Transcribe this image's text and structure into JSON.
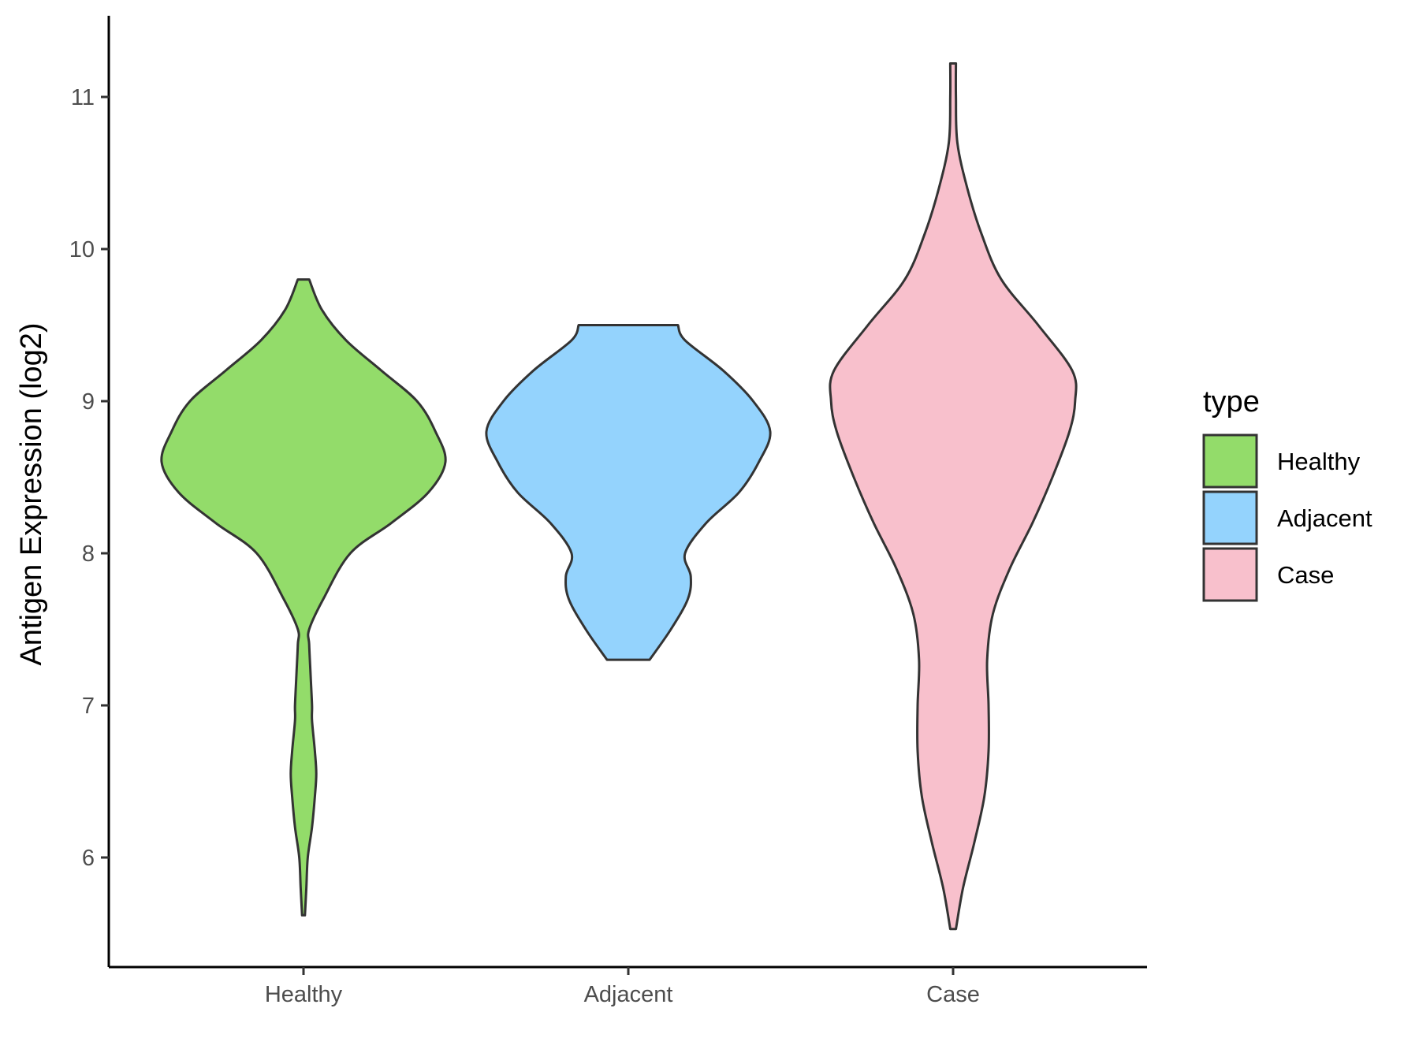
{
  "chart_data": {
    "type": "violin",
    "title": "",
    "xlabel": "",
    "ylabel": "Antigen Expression (log2)",
    "ylim": [
      5.3,
      11.5
    ],
    "yticks": [
      6,
      7,
      8,
      9,
      10,
      11
    ],
    "categories": [
      "Healthy",
      "Adjacent",
      "Case"
    ],
    "legend": {
      "title": "type",
      "position": "right"
    },
    "series": [
      {
        "name": "Healthy",
        "color": "#93dc6a",
        "min": 5.62,
        "max": 9.8,
        "density_profile": [
          [
            5.62,
            0.01
          ],
          [
            5.8,
            0.02
          ],
          [
            6.0,
            0.03
          ],
          [
            6.2,
            0.06
          ],
          [
            6.4,
            0.08
          ],
          [
            6.55,
            0.09
          ],
          [
            6.7,
            0.08
          ],
          [
            6.9,
            0.06
          ],
          [
            7.0,
            0.06
          ],
          [
            7.2,
            0.05
          ],
          [
            7.4,
            0.04
          ],
          [
            7.5,
            0.04
          ],
          [
            7.7,
            0.14
          ],
          [
            8.0,
            0.33
          ],
          [
            8.2,
            0.62
          ],
          [
            8.4,
            0.88
          ],
          [
            8.6,
            1.0
          ],
          [
            8.8,
            0.93
          ],
          [
            9.0,
            0.8
          ],
          [
            9.2,
            0.55
          ],
          [
            9.4,
            0.3
          ],
          [
            9.6,
            0.13
          ],
          [
            9.8,
            0.04
          ]
        ]
      },
      {
        "name": "Adjacent",
        "color": "#94d3fd",
        "min": 7.3,
        "max": 9.5,
        "density_profile": [
          [
            7.3,
            0.15
          ],
          [
            7.5,
            0.3
          ],
          [
            7.7,
            0.42
          ],
          [
            7.85,
            0.44
          ],
          [
            8.0,
            0.4
          ],
          [
            8.2,
            0.55
          ],
          [
            8.4,
            0.78
          ],
          [
            8.6,
            0.92
          ],
          [
            8.8,
            1.0
          ],
          [
            9.0,
            0.88
          ],
          [
            9.2,
            0.67
          ],
          [
            9.4,
            0.4
          ],
          [
            9.5,
            0.35
          ]
        ]
      },
      {
        "name": "Case",
        "color": "#f8c0cc",
        "min": 5.53,
        "max": 11.22,
        "density_profile": [
          [
            5.53,
            0.02
          ],
          [
            5.8,
            0.07
          ],
          [
            6.1,
            0.15
          ],
          [
            6.4,
            0.22
          ],
          [
            6.7,
            0.25
          ],
          [
            7.0,
            0.25
          ],
          [
            7.3,
            0.24
          ],
          [
            7.6,
            0.28
          ],
          [
            7.9,
            0.4
          ],
          [
            8.2,
            0.56
          ],
          [
            8.5,
            0.7
          ],
          [
            8.8,
            0.82
          ],
          [
            9.0,
            0.86
          ],
          [
            9.2,
            0.84
          ],
          [
            9.5,
            0.6
          ],
          [
            9.8,
            0.34
          ],
          [
            10.1,
            0.2
          ],
          [
            10.4,
            0.1
          ],
          [
            10.7,
            0.03
          ],
          [
            11.0,
            0.02
          ],
          [
            11.22,
            0.02
          ]
        ]
      }
    ]
  }
}
